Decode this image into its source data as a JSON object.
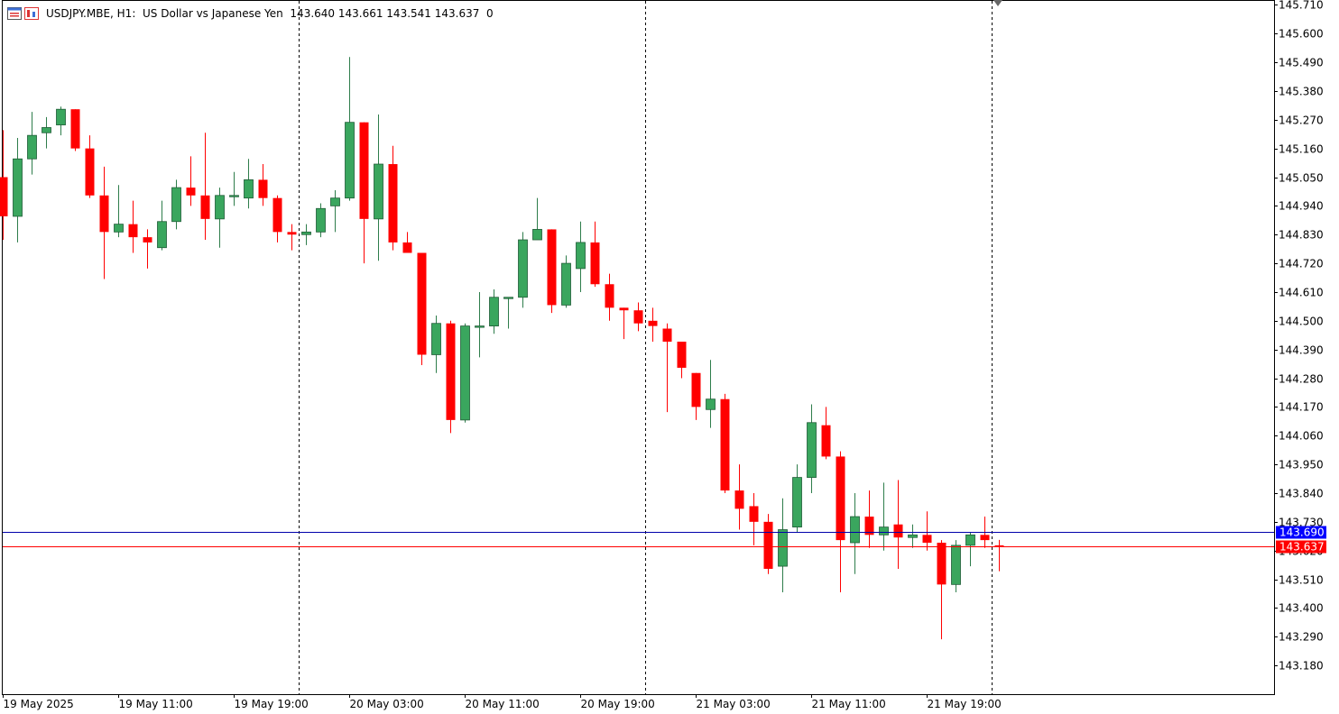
{
  "header": {
    "symbol": "USDJPY.MBE, H1:",
    "description": "US Dollar vs Japanese Yen",
    "ohlc": "143.640 143.661 143.541 143.637",
    "volume": "0",
    "icons": [
      "window-list-icon",
      "chart-type-icon"
    ]
  },
  "colors": {
    "bull": "#3aa65e",
    "bear": "#ff0000",
    "ask_line": "#0000aa",
    "bid_line": "#ff0000",
    "ask_tag": "#0000ff",
    "bid_tag": "#ff0000",
    "background": "#ffffff"
  },
  "chart_data": {
    "type": "candlestick",
    "timeframe": "H1",
    "ylim": [
      143.07,
      145.725
    ],
    "y_ticks": [
      "145.710",
      "145.600",
      "145.490",
      "145.380",
      "145.270",
      "145.160",
      "145.050",
      "144.940",
      "144.830",
      "144.720",
      "144.610",
      "144.500",
      "144.390",
      "144.280",
      "144.170",
      "144.060",
      "143.950",
      "143.840",
      "143.730",
      "143.620",
      "143.510",
      "143.400",
      "143.290",
      "143.180"
    ],
    "x_labels": [
      {
        "index": 0,
        "text": "19 May 2025"
      },
      {
        "index": 8,
        "text": "19 May 11:00"
      },
      {
        "index": 16,
        "text": "19 May 19:00"
      },
      {
        "index": 24,
        "text": "20 May 03:00"
      },
      {
        "index": 32,
        "text": "20 May 11:00"
      },
      {
        "index": 40,
        "text": "20 May 19:00"
      },
      {
        "index": 48,
        "text": "21 May 03:00"
      },
      {
        "index": 56,
        "text": "21 May 11:00"
      },
      {
        "index": 64,
        "text": "21 May 19:00"
      }
    ],
    "period_separators": [
      20.5,
      44.5,
      68.5
    ],
    "ask_price": "143.690",
    "bid_price": "143.637",
    "ask_value": 143.69,
    "bid_value": 143.637,
    "candles": [
      {
        "o": 145.05,
        "h": 145.23,
        "l": 144.81,
        "c": 144.9
      },
      {
        "o": 144.9,
        "h": 145.2,
        "l": 144.8,
        "c": 145.12
      },
      {
        "o": 145.12,
        "h": 145.3,
        "l": 145.06,
        "c": 145.21
      },
      {
        "o": 145.22,
        "h": 145.28,
        "l": 145.16,
        "c": 145.24
      },
      {
        "o": 145.25,
        "h": 145.32,
        "l": 145.21,
        "c": 145.31
      },
      {
        "o": 145.31,
        "h": 145.31,
        "l": 145.15,
        "c": 145.16
      },
      {
        "o": 145.16,
        "h": 145.21,
        "l": 144.97,
        "c": 144.98
      },
      {
        "o": 144.98,
        "h": 145.09,
        "l": 144.66,
        "c": 144.84
      },
      {
        "o": 144.84,
        "h": 145.02,
        "l": 144.82,
        "c": 144.87
      },
      {
        "o": 144.87,
        "h": 144.96,
        "l": 144.76,
        "c": 144.82
      },
      {
        "o": 144.82,
        "h": 144.85,
        "l": 144.7,
        "c": 144.8
      },
      {
        "o": 144.78,
        "h": 144.96,
        "l": 144.77,
        "c": 144.88
      },
      {
        "o": 144.88,
        "h": 145.04,
        "l": 144.85,
        "c": 145.01
      },
      {
        "o": 145.01,
        "h": 145.13,
        "l": 144.94,
        "c": 144.98
      },
      {
        "o": 144.98,
        "h": 145.22,
        "l": 144.81,
        "c": 144.89
      },
      {
        "o": 144.89,
        "h": 145.01,
        "l": 144.78,
        "c": 144.98
      },
      {
        "o": 144.98,
        "h": 145.07,
        "l": 144.94,
        "c": 144.98
      },
      {
        "o": 144.97,
        "h": 145.12,
        "l": 144.93,
        "c": 145.04
      },
      {
        "o": 145.04,
        "h": 145.1,
        "l": 144.94,
        "c": 144.97
      },
      {
        "o": 144.97,
        "h": 144.98,
        "l": 144.8,
        "c": 144.84
      },
      {
        "o": 144.84,
        "h": 144.87,
        "l": 144.77,
        "c": 144.83
      },
      {
        "o": 144.83,
        "h": 144.87,
        "l": 144.79,
        "c": 144.84
      },
      {
        "o": 144.84,
        "h": 144.95,
        "l": 144.82,
        "c": 144.93
      },
      {
        "o": 144.94,
        "h": 145.0,
        "l": 144.84,
        "c": 144.97
      },
      {
        "o": 144.97,
        "h": 145.51,
        "l": 144.96,
        "c": 145.26
      },
      {
        "o": 145.26,
        "h": 145.26,
        "l": 144.72,
        "c": 144.89
      },
      {
        "o": 144.89,
        "h": 145.29,
        "l": 144.73,
        "c": 145.1
      },
      {
        "o": 145.1,
        "h": 145.17,
        "l": 144.77,
        "c": 144.8
      },
      {
        "o": 144.8,
        "h": 144.84,
        "l": 144.76,
        "c": 144.76
      },
      {
        "o": 144.76,
        "h": 144.76,
        "l": 144.33,
        "c": 144.37
      },
      {
        "o": 144.37,
        "h": 144.52,
        "l": 144.3,
        "c": 144.49
      },
      {
        "o": 144.49,
        "h": 144.5,
        "l": 144.07,
        "c": 144.12
      },
      {
        "o": 144.12,
        "h": 144.49,
        "l": 144.11,
        "c": 144.48
      },
      {
        "o": 144.48,
        "h": 144.61,
        "l": 144.36,
        "c": 144.48
      },
      {
        "o": 144.48,
        "h": 144.62,
        "l": 144.45,
        "c": 144.59
      },
      {
        "o": 144.59,
        "h": 144.59,
        "l": 144.47,
        "c": 144.59
      },
      {
        "o": 144.59,
        "h": 144.84,
        "l": 144.55,
        "c": 144.81
      },
      {
        "o": 144.81,
        "h": 144.97,
        "l": 144.81,
        "c": 144.85
      },
      {
        "o": 144.85,
        "h": 144.85,
        "l": 144.53,
        "c": 144.56
      },
      {
        "o": 144.56,
        "h": 144.75,
        "l": 144.55,
        "c": 144.72
      },
      {
        "o": 144.7,
        "h": 144.88,
        "l": 144.61,
        "c": 144.8
      },
      {
        "o": 144.8,
        "h": 144.88,
        "l": 144.63,
        "c": 144.64
      },
      {
        "o": 144.64,
        "h": 144.68,
        "l": 144.5,
        "c": 144.55
      },
      {
        "o": 144.55,
        "h": 144.55,
        "l": 144.43,
        "c": 144.54
      },
      {
        "o": 144.54,
        "h": 144.57,
        "l": 144.46,
        "c": 144.49
      },
      {
        "o": 144.5,
        "h": 144.55,
        "l": 144.42,
        "c": 144.48
      },
      {
        "o": 144.47,
        "h": 144.49,
        "l": 144.15,
        "c": 144.42
      },
      {
        "o": 144.42,
        "h": 144.42,
        "l": 144.28,
        "c": 144.32
      },
      {
        "o": 144.3,
        "h": 144.3,
        "l": 144.12,
        "c": 144.17
      },
      {
        "o": 144.16,
        "h": 144.35,
        "l": 144.09,
        "c": 144.2
      },
      {
        "o": 144.2,
        "h": 144.22,
        "l": 143.84,
        "c": 143.85
      },
      {
        "o": 143.85,
        "h": 143.95,
        "l": 143.7,
        "c": 143.78
      },
      {
        "o": 143.79,
        "h": 143.84,
        "l": 143.64,
        "c": 143.73
      },
      {
        "o": 143.73,
        "h": 143.76,
        "l": 143.53,
        "c": 143.55
      },
      {
        "o": 143.56,
        "h": 143.82,
        "l": 143.46,
        "c": 143.7
      },
      {
        "o": 143.71,
        "h": 143.95,
        "l": 143.69,
        "c": 143.9
      },
      {
        "o": 143.9,
        "h": 144.18,
        "l": 143.84,
        "c": 144.11
      },
      {
        "o": 144.1,
        "h": 144.17,
        "l": 143.97,
        "c": 143.98
      },
      {
        "o": 143.98,
        "h": 144.0,
        "l": 143.46,
        "c": 143.66
      },
      {
        "o": 143.65,
        "h": 143.84,
        "l": 143.53,
        "c": 143.75
      },
      {
        "o": 143.75,
        "h": 143.85,
        "l": 143.63,
        "c": 143.68
      },
      {
        "o": 143.68,
        "h": 143.88,
        "l": 143.62,
        "c": 143.71
      },
      {
        "o": 143.72,
        "h": 143.89,
        "l": 143.55,
        "c": 143.67
      },
      {
        "o": 143.67,
        "h": 143.72,
        "l": 143.63,
        "c": 143.68
      },
      {
        "o": 143.68,
        "h": 143.77,
        "l": 143.62,
        "c": 143.65
      },
      {
        "o": 143.65,
        "h": 143.66,
        "l": 143.28,
        "c": 143.49
      },
      {
        "o": 143.49,
        "h": 143.66,
        "l": 143.46,
        "c": 143.64
      },
      {
        "o": 143.64,
        "h": 143.69,
        "l": 143.56,
        "c": 143.68
      },
      {
        "o": 143.68,
        "h": 143.75,
        "l": 143.63,
        "c": 143.66
      },
      {
        "o": 143.64,
        "h": 143.661,
        "l": 143.541,
        "c": 143.637
      }
    ]
  }
}
